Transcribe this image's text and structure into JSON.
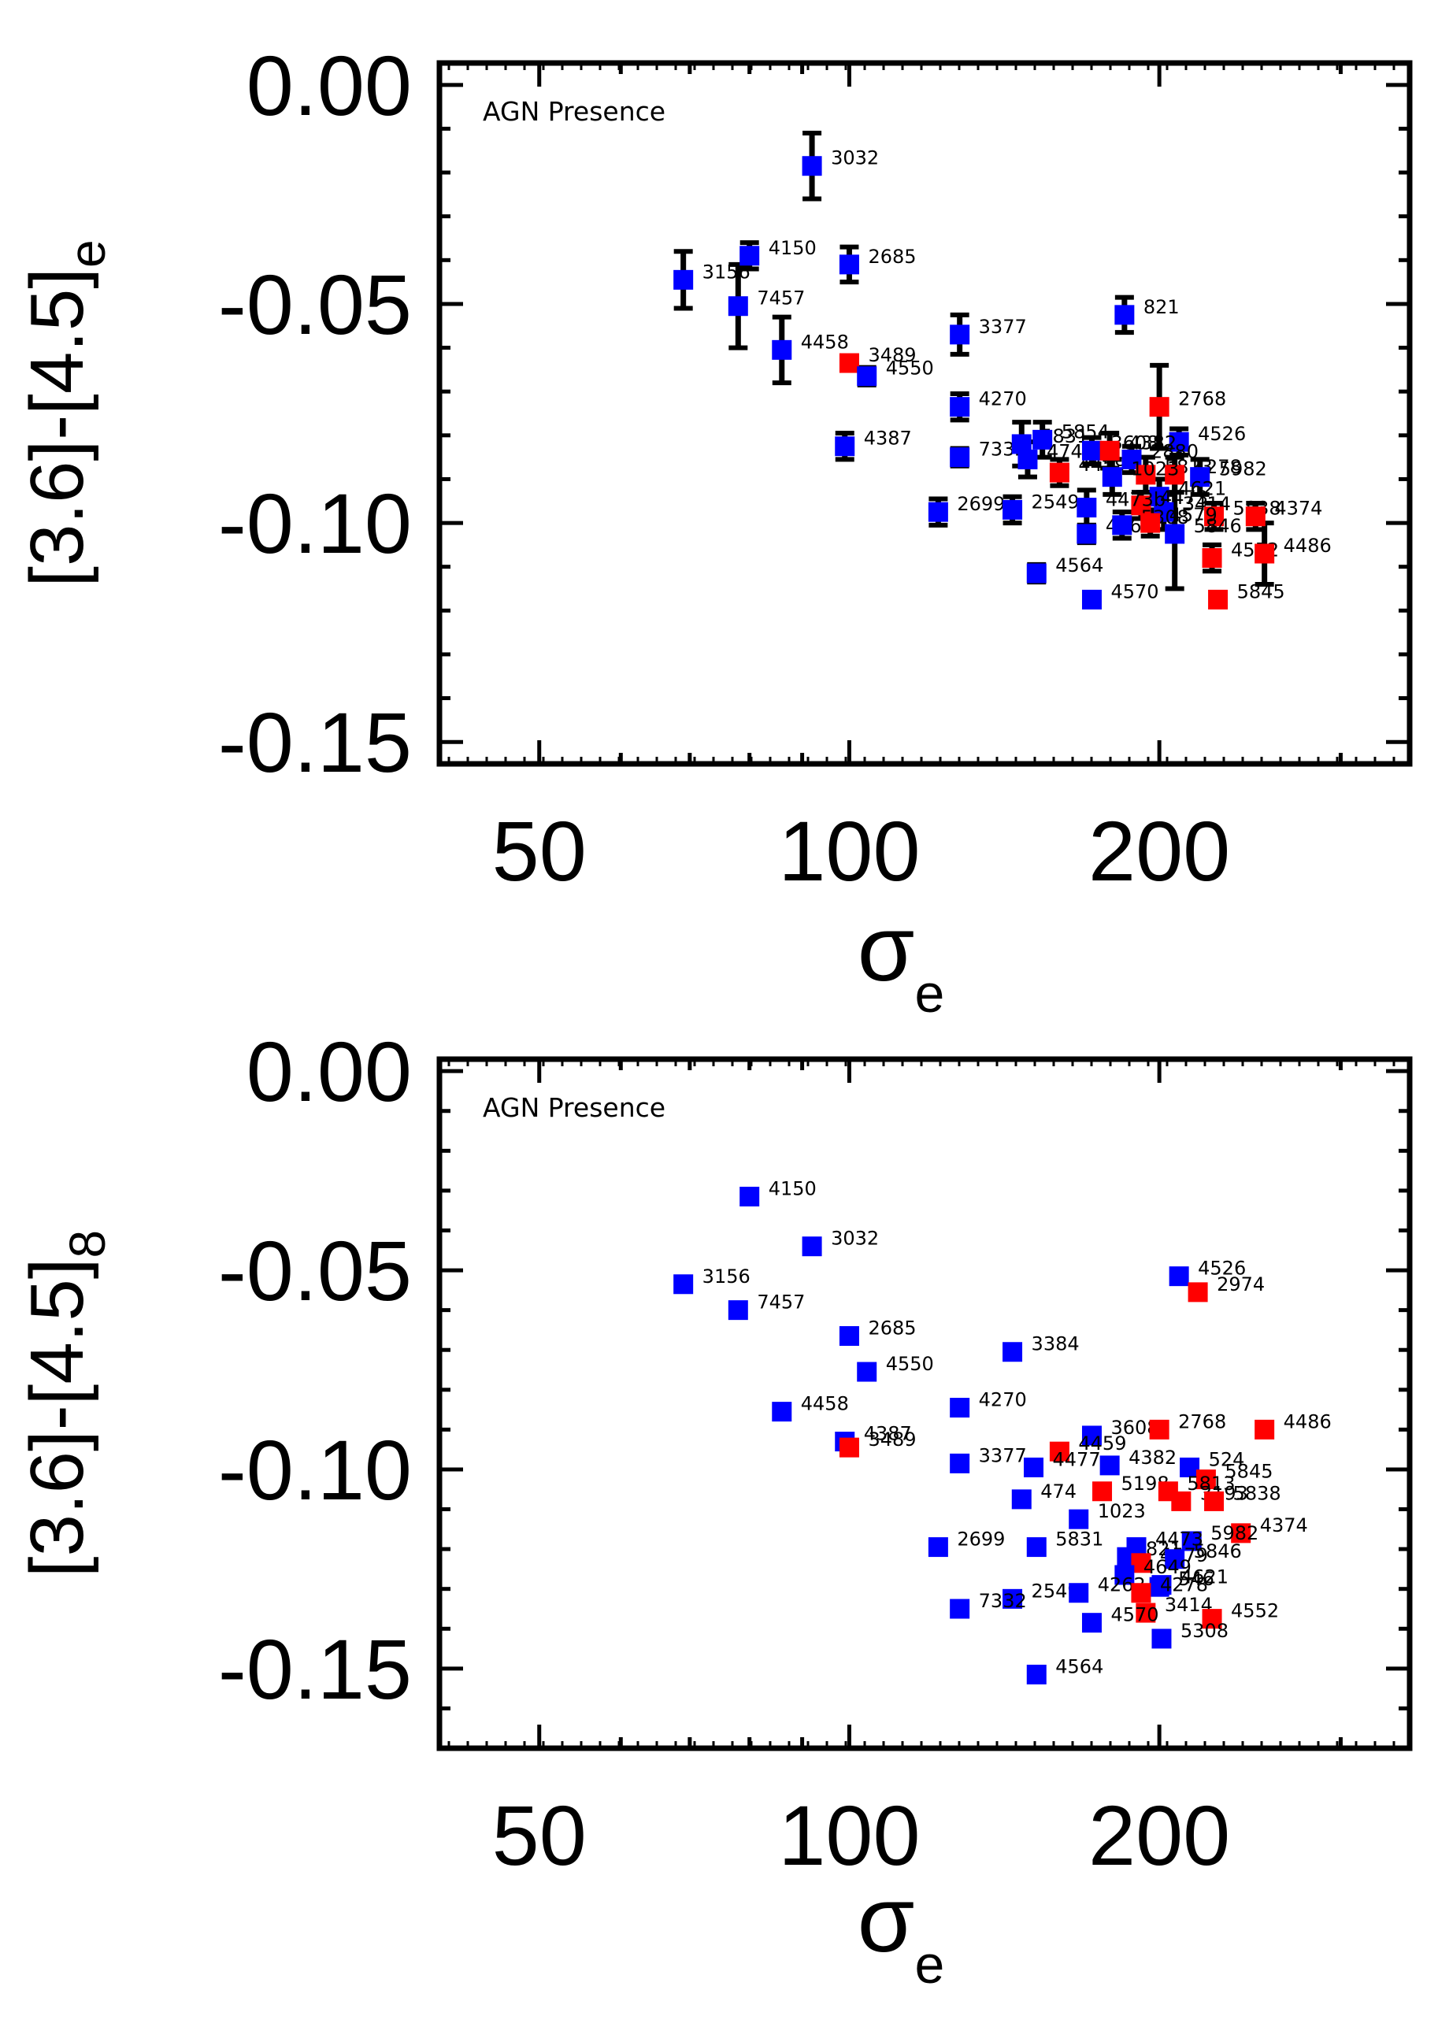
{
  "colors": {
    "agn": "#ff0000",
    "non_agn": "#0000ff",
    "frame": "#000000",
    "errorbar": "#000000"
  },
  "chart_data": [
    {
      "type": "scatter",
      "annotation": "AGN Presence",
      "ylabel_main": "[3.6]-[4.5]",
      "ylabel_sub": "e",
      "xlabel_main": "σ",
      "xlabel_sub": "e",
      "xscale": "log",
      "xlim": [
        40,
        350
      ],
      "ylim": [
        -0.155,
        0.005
      ],
      "xticks": [
        50,
        100,
        200
      ],
      "xtick_labels": [
        "50",
        "100",
        "200"
      ],
      "yticks": [
        0.0,
        -0.05,
        -0.1,
        -0.15
      ],
      "ytick_labels": [
        "0.00",
        "-0.05",
        "-0.10",
        "-0.15"
      ],
      "points": [
        {
          "label": "3032",
          "x": 92,
          "y": -0.0185,
          "err": 0.0075,
          "agn": false
        },
        {
          "label": "3156",
          "x": 69,
          "y": -0.0445,
          "err": 0.0065,
          "agn": false
        },
        {
          "label": "4150",
          "x": 80,
          "y": -0.039,
          "err": 0.003,
          "agn": false
        },
        {
          "label": "2685",
          "x": 100,
          "y": -0.041,
          "err": 0.004,
          "agn": false
        },
        {
          "label": "7457",
          "x": 78,
          "y": -0.0505,
          "err": 0.0095,
          "agn": false
        },
        {
          "label": "821",
          "x": 185,
          "y": -0.0525,
          "err": 0.004,
          "agn": false
        },
        {
          "label": "4458",
          "x": 86,
          "y": -0.0605,
          "err": 0.0075,
          "agn": false
        },
        {
          "label": "3377",
          "x": 128,
          "y": -0.057,
          "err": 0.0045,
          "agn": false
        },
        {
          "label": "3489",
          "x": 100,
          "y": -0.0635,
          "err": 0.0015,
          "agn": true
        },
        {
          "label": "4550",
          "x": 104,
          "y": -0.0665,
          "err": 0.002,
          "agn": false
        },
        {
          "label": "2768",
          "x": 200,
          "y": -0.0735,
          "err": 0.0095,
          "agn": true
        },
        {
          "label": "4270",
          "x": 128,
          "y": -0.0735,
          "err": 0.003,
          "agn": false
        },
        {
          "label": "4526",
          "x": 209,
          "y": -0.0815,
          "err": 0.003,
          "agn": false
        },
        {
          "label": "4387",
          "x": 99,
          "y": -0.0825,
          "err": 0.003,
          "agn": false
        },
        {
          "label": "7332",
          "x": 128,
          "y": -0.085,
          "err": 0.002,
          "agn": false
        },
        {
          "label": "5831",
          "x": 147,
          "y": -0.082,
          "err": 0.005,
          "agn": false
        },
        {
          "label": "5854",
          "x": 154,
          "y": -0.081,
          "err": 0.004,
          "agn": false
        },
        {
          "label": "4747",
          "x": 149,
          "y": -0.0855,
          "err": 0.004,
          "agn": false
        },
        {
          "label": "4459",
          "x": 160,
          "y": -0.0885,
          "err": 0.003,
          "agn": true
        },
        {
          "label": "3608",
          "x": 172,
          "y": -0.0835,
          "err": 0.003,
          "agn": false
        },
        {
          "label": "4382",
          "x": 179,
          "y": -0.0835,
          "err": 0.004,
          "agn": true
        },
        {
          "label": "2880",
          "x": 188,
          "y": -0.0855,
          "err": 0.003,
          "agn": false
        },
        {
          "label": "5813",
          "x": 194,
          "y": -0.089,
          "err": 0.004,
          "agn": true
        },
        {
          "label": "4278",
          "x": 207,
          "y": -0.089,
          "err": 0.004,
          "agn": true
        },
        {
          "label": "1023",
          "x": 180,
          "y": -0.0895,
          "err": 0.004,
          "agn": false
        },
        {
          "label": "5982",
          "x": 219,
          "y": -0.0895,
          "err": 0.004,
          "agn": false
        },
        {
          "label": "4621",
          "x": 200,
          "y": -0.094,
          "err": 0.004,
          "agn": false
        },
        {
          "label": "4473",
          "x": 192,
          "y": -0.096,
          "err": 0.003,
          "agn": true
        },
        {
          "label": "3414",
          "x": 202,
          "y": -0.0975,
          "err": 0.004,
          "agn": false
        },
        {
          "label": "2699",
          "x": 122,
          "y": -0.0975,
          "err": 0.003,
          "agn": false
        },
        {
          "label": "2549",
          "x": 144,
          "y": -0.097,
          "err": 0.003,
          "agn": false
        },
        {
          "label": "4473b",
          "x": 170,
          "y": -0.0965,
          "err": 0.004,
          "agn": false
        },
        {
          "label": "5838",
          "x": 226,
          "y": -0.0985,
          "err": 0.003,
          "agn": true
        },
        {
          "label": "4374",
          "x": 248,
          "y": -0.0985,
          "err": 0.003,
          "agn": true
        },
        {
          "label": "4262",
          "x": 170,
          "y": -0.1025,
          "err": 0.002,
          "agn": false
        },
        {
          "label": "5308",
          "x": 184,
          "y": -0.1005,
          "err": 0.003,
          "agn": false
        },
        {
          "label": "4579",
          "x": 196,
          "y": -0.1,
          "err": 0.003,
          "agn": true
        },
        {
          "label": "5846",
          "x": 207,
          "y": -0.1025,
          "err": 0.0125,
          "agn": false
        },
        {
          "label": "4552",
          "x": 225,
          "y": -0.108,
          "err": 0.003,
          "agn": true
        },
        {
          "label": "4486",
          "x": 253,
          "y": -0.107,
          "err": 0.007,
          "agn": true
        },
        {
          "label": "4564",
          "x": 152,
          "y": -0.1115,
          "err": 0.002,
          "agn": false
        },
        {
          "label": "4570",
          "x": 172,
          "y": -0.1175,
          "err": 0.001,
          "agn": false
        },
        {
          "label": "5845",
          "x": 228,
          "y": -0.1175,
          "err": 0.001,
          "agn": true
        }
      ]
    },
    {
      "type": "scatter",
      "annotation": "AGN Presence",
      "ylabel_main": "[3.6]-[4.5]",
      "ylabel_sub": "8",
      "xlabel_main": "σ",
      "xlabel_sub": "e",
      "xscale": "log",
      "xlim": [
        40,
        350
      ],
      "ylim": [
        -0.17,
        0.003
      ],
      "xticks": [
        50,
        100,
        200
      ],
      "xtick_labels": [
        "50",
        "100",
        "200"
      ],
      "yticks": [
        0.0,
        -0.05,
        -0.1,
        -0.15
      ],
      "ytick_labels": [
        "0.00",
        "-0.05",
        "-0.10",
        "-0.15"
      ],
      "points": [
        {
          "label": "4150",
          "x": 80,
          "y": -0.0315,
          "agn": false
        },
        {
          "label": "3032",
          "x": 92,
          "y": -0.044,
          "agn": false
        },
        {
          "label": "3156",
          "x": 69,
          "y": -0.0535,
          "agn": false
        },
        {
          "label": "4526",
          "x": 209,
          "y": -0.0515,
          "agn": false
        },
        {
          "label": "2974",
          "x": 218,
          "y": -0.0555,
          "agn": true
        },
        {
          "label": "7457",
          "x": 78,
          "y": -0.06,
          "agn": false
        },
        {
          "label": "2685",
          "x": 100,
          "y": -0.0665,
          "agn": false
        },
        {
          "label": "3384",
          "x": 144,
          "y": -0.0705,
          "agn": false
        },
        {
          "label": "4550",
          "x": 104,
          "y": -0.0755,
          "agn": false
        },
        {
          "label": "4270",
          "x": 128,
          "y": -0.0845,
          "agn": false
        },
        {
          "label": "4458",
          "x": 86,
          "y": -0.0855,
          "agn": false
        },
        {
          "label": "3608",
          "x": 172,
          "y": -0.0915,
          "agn": false
        },
        {
          "label": "2768",
          "x": 200,
          "y": -0.09,
          "agn": true
        },
        {
          "label": "4486",
          "x": 253,
          "y": -0.09,
          "agn": true
        },
        {
          "label": "4387",
          "x": 99,
          "y": -0.093,
          "agn": false
        },
        {
          "label": "3489",
          "x": 100,
          "y": -0.0945,
          "agn": true
        },
        {
          "label": "4459",
          "x": 160,
          "y": -0.0955,
          "agn": true
        },
        {
          "label": "3377",
          "x": 128,
          "y": -0.0985,
          "agn": false
        },
        {
          "label": "4477",
          "x": 151,
          "y": -0.0995,
          "agn": false
        },
        {
          "label": "4382",
          "x": 179,
          "y": -0.099,
          "agn": false
        },
        {
          "label": "524",
          "x": 214,
          "y": -0.0995,
          "agn": false
        },
        {
          "label": "5845",
          "x": 222,
          "y": -0.1025,
          "agn": true
        },
        {
          "label": "474",
          "x": 147,
          "y": -0.1075,
          "agn": false
        },
        {
          "label": "5198",
          "x": 176,
          "y": -0.1055,
          "agn": true
        },
        {
          "label": "5813",
          "x": 204,
          "y": -0.1055,
          "agn": true
        },
        {
          "label": "3193",
          "x": 210,
          "y": -0.108,
          "agn": true
        },
        {
          "label": "5838",
          "x": 226,
          "y": -0.108,
          "agn": true
        },
        {
          "label": "1023",
          "x": 167,
          "y": -0.1125,
          "agn": false
        },
        {
          "label": "4374",
          "x": 240,
          "y": -0.116,
          "agn": true
        },
        {
          "label": "5982",
          "x": 215,
          "y": -0.118,
          "agn": false
        },
        {
          "label": "2699",
          "x": 122,
          "y": -0.1195,
          "agn": false
        },
        {
          "label": "5831",
          "x": 152,
          "y": -0.1195,
          "agn": false
        },
        {
          "label": "4473",
          "x": 190,
          "y": -0.1195,
          "agn": false
        },
        {
          "label": "821",
          "x": 186,
          "y": -0.122,
          "agn": false
        },
        {
          "label": "4579",
          "x": 192,
          "y": -0.1235,
          "agn": true
        },
        {
          "label": "5846",
          "x": 207,
          "y": -0.1225,
          "agn": false
        },
        {
          "label": "4649",
          "x": 185,
          "y": -0.1265,
          "agn": false
        },
        {
          "label": "4621",
          "x": 201,
          "y": -0.129,
          "agn": false
        },
        {
          "label": "546",
          "x": 200,
          "y": -0.1295,
          "agn": false
        },
        {
          "label": "2549",
          "x": 144,
          "y": -0.1325,
          "agn": false
        },
        {
          "label": "4262",
          "x": 167,
          "y": -0.131,
          "agn": false
        },
        {
          "label": "4278",
          "x": 192,
          "y": -0.131,
          "agn": true
        },
        {
          "label": "7332",
          "x": 128,
          "y": -0.135,
          "agn": false
        },
        {
          "label": "3414",
          "x": 194,
          "y": -0.136,
          "agn": true
        },
        {
          "label": "4552",
          "x": 225,
          "y": -0.1375,
          "agn": true
        },
        {
          "label": "4570",
          "x": 172,
          "y": -0.1385,
          "agn": false
        },
        {
          "label": "5308",
          "x": 201,
          "y": -0.1425,
          "agn": false
        },
        {
          "label": "4564",
          "x": 152,
          "y": -0.1515,
          "agn": false
        }
      ]
    }
  ]
}
